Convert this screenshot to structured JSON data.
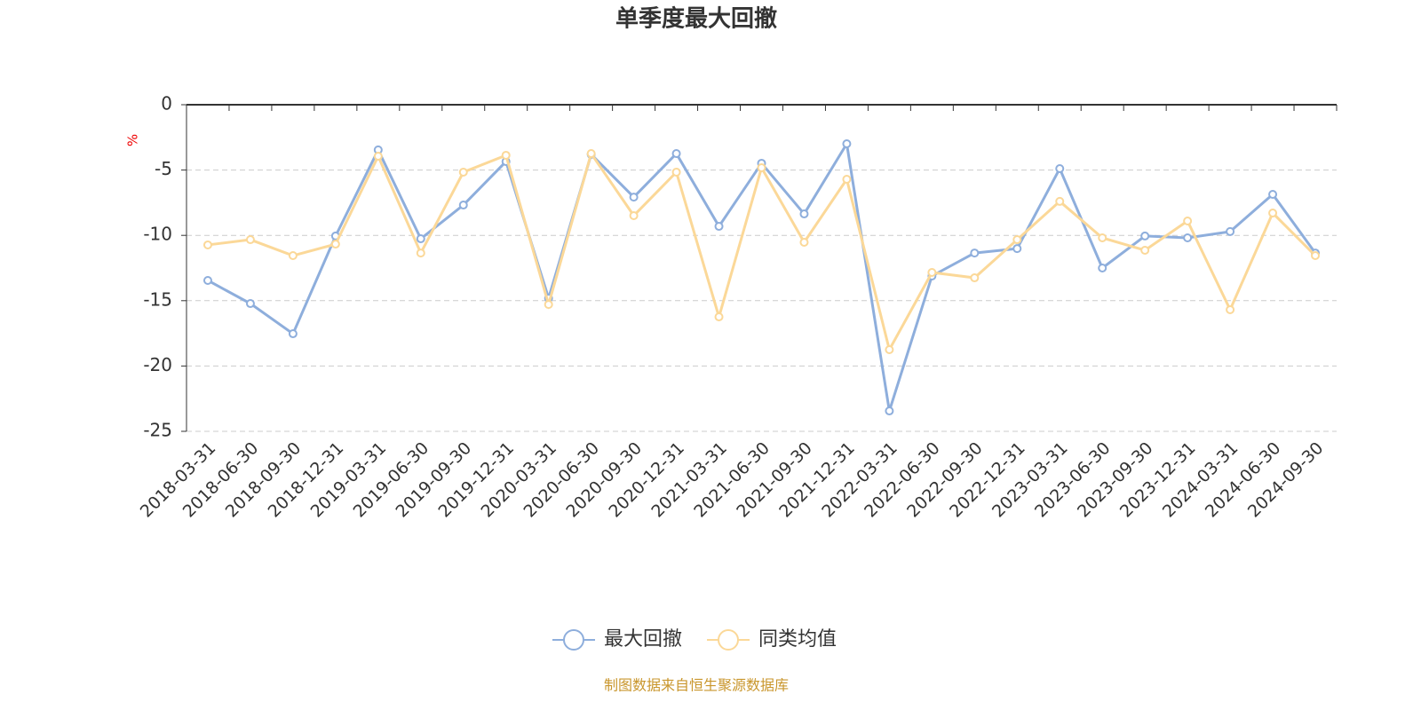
{
  "chart_data": {
    "type": "line",
    "title": "单季度最大回撤",
    "y_label": "%",
    "categories": [
      "2018-03-31",
      "2018-06-30",
      "2018-09-30",
      "2018-12-31",
      "2019-03-31",
      "2019-06-30",
      "2019-09-30",
      "2019-12-31",
      "2020-03-31",
      "2020-06-30",
      "2020-09-30",
      "2020-12-31",
      "2021-03-31",
      "2021-06-30",
      "2021-09-30",
      "2021-12-31",
      "2022-03-31",
      "2022-06-30",
      "2022-09-30",
      "2022-12-31",
      "2023-03-31",
      "2023-06-30",
      "2023-09-30",
      "2023-12-31",
      "2024-03-31",
      "2024-06-30",
      "2024-09-30"
    ],
    "series": [
      {
        "name": "最大回撤",
        "color": "#8eaedc",
        "values": [
          -13.45,
          -15.22,
          -17.53,
          -10.05,
          -3.46,
          -10.26,
          -7.68,
          -4.35,
          -14.81,
          -3.8,
          -7.07,
          -3.74,
          -9.31,
          -4.48,
          -8.36,
          -2.99,
          -23.44,
          -13.11,
          -11.35,
          -11.01,
          -4.89,
          -12.5,
          -10.05,
          -10.19,
          -9.71,
          -6.86,
          -11.35
        ]
      },
      {
        "name": "同类均值",
        "color": "#fbd898",
        "values": [
          -10.73,
          -10.33,
          -11.55,
          -10.67,
          -3.94,
          -11.35,
          -5.16,
          -3.87,
          -15.29,
          -3.74,
          -8.49,
          -5.16,
          -16.24,
          -4.82,
          -10.53,
          -5.71,
          -18.75,
          -12.84,
          -13.25,
          -10.33,
          -7.4,
          -10.19,
          -11.14,
          -8.9,
          -15.69,
          -8.29,
          -11.55
        ]
      }
    ],
    "ylim": [
      -25,
      0
    ],
    "yticks": [
      0,
      -5,
      -10,
      -15,
      -20,
      -25
    ],
    "grid": true,
    "source": "制图数据来自恒生聚源数据库"
  }
}
